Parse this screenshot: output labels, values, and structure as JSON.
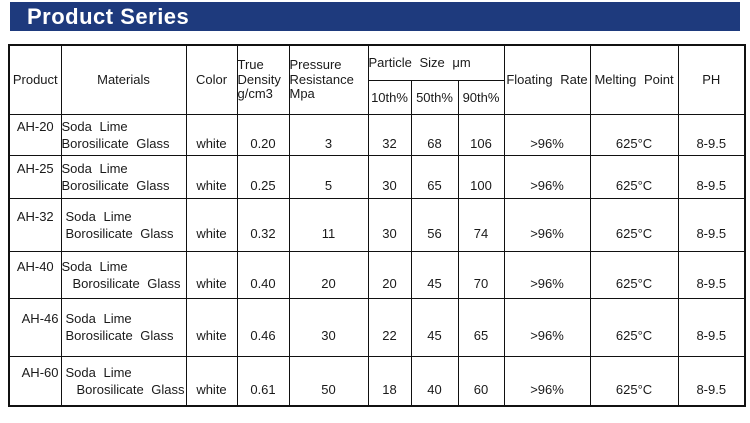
{
  "banner": {
    "title": "Product Series",
    "background_color": "#1e3a7d",
    "text_color": "#ffffff"
  },
  "table": {
    "header": {
      "product": "Product",
      "materials": "Materials",
      "color": "Color",
      "true_density_lines": [
        "True",
        "Density",
        "g/cm3"
      ],
      "pressure_resistance_lines": [
        "Pressure",
        "Resistance",
        "Mpa"
      ],
      "particle_size": "Particle Size μm",
      "particle_subheaders": [
        "10th%",
        "50th%",
        "90th%"
      ],
      "floating_rate": "Floating Rate",
      "melting_point": "Melting Point",
      "ph": "PH"
    },
    "rows": [
      {
        "product": "AH-20",
        "materials_line1": "Soda Lime",
        "materials_line2": "Borosilicate Glass",
        "color": "white",
        "true_density": "0.20",
        "pressure_resistance": "3",
        "particle_10th": "32",
        "particle_50th": "68",
        "particle_90th": "106",
        "floating_rate": ">96%",
        "melting_point": "625°C",
        "ph": "8-9.5"
      },
      {
        "product": "AH-25",
        "materials_line1": "Soda Lime",
        "materials_line2": "Borosilicate Glass",
        "color": "white",
        "true_density": "0.25",
        "pressure_resistance": "5",
        "particle_10th": "30",
        "particle_50th": "65",
        "particle_90th": "100",
        "floating_rate": ">96%",
        "melting_point": "625°C",
        "ph": "8-9.5"
      },
      {
        "product": "AH-32",
        "materials_line1": "Soda Lime",
        "materials_line2": "Borosilicate Glass",
        "color": "white",
        "true_density": "0.32",
        "pressure_resistance": "11",
        "particle_10th": "30",
        "particle_50th": "56",
        "particle_90th": "74",
        "floating_rate": ">96%",
        "melting_point": "625°C",
        "ph": "8-9.5"
      },
      {
        "product": "AH-40",
        "materials_line1": "Soda Lime",
        "materials_line2": "Borosilicate Glass",
        "color": "white",
        "true_density": "0.40",
        "pressure_resistance": "20",
        "particle_10th": "20",
        "particle_50th": "45",
        "particle_90th": "70",
        "floating_rate": ">96%",
        "melting_point": "625°C",
        "ph": "8-9.5"
      },
      {
        "product": "AH-46",
        "materials_line1": "Soda Lime",
        "materials_line2": "Borosilicate Glass",
        "color": "white",
        "true_density": "0.46",
        "pressure_resistance": "30",
        "particle_10th": "22",
        "particle_50th": "45",
        "particle_90th": "65",
        "floating_rate": ">96%",
        "melting_point": "625°C",
        "ph": "8-9.5"
      },
      {
        "product": "AH-60",
        "materials_line1": "Soda Lime",
        "materials_line2": "Borosilicate Glass",
        "color": "white",
        "true_density": "0.61",
        "pressure_resistance": "50",
        "particle_10th": "18",
        "particle_50th": "40",
        "particle_90th": "60",
        "floating_rate": ">96%",
        "melting_point": "625°C",
        "ph": "8-9.5"
      }
    ]
  }
}
